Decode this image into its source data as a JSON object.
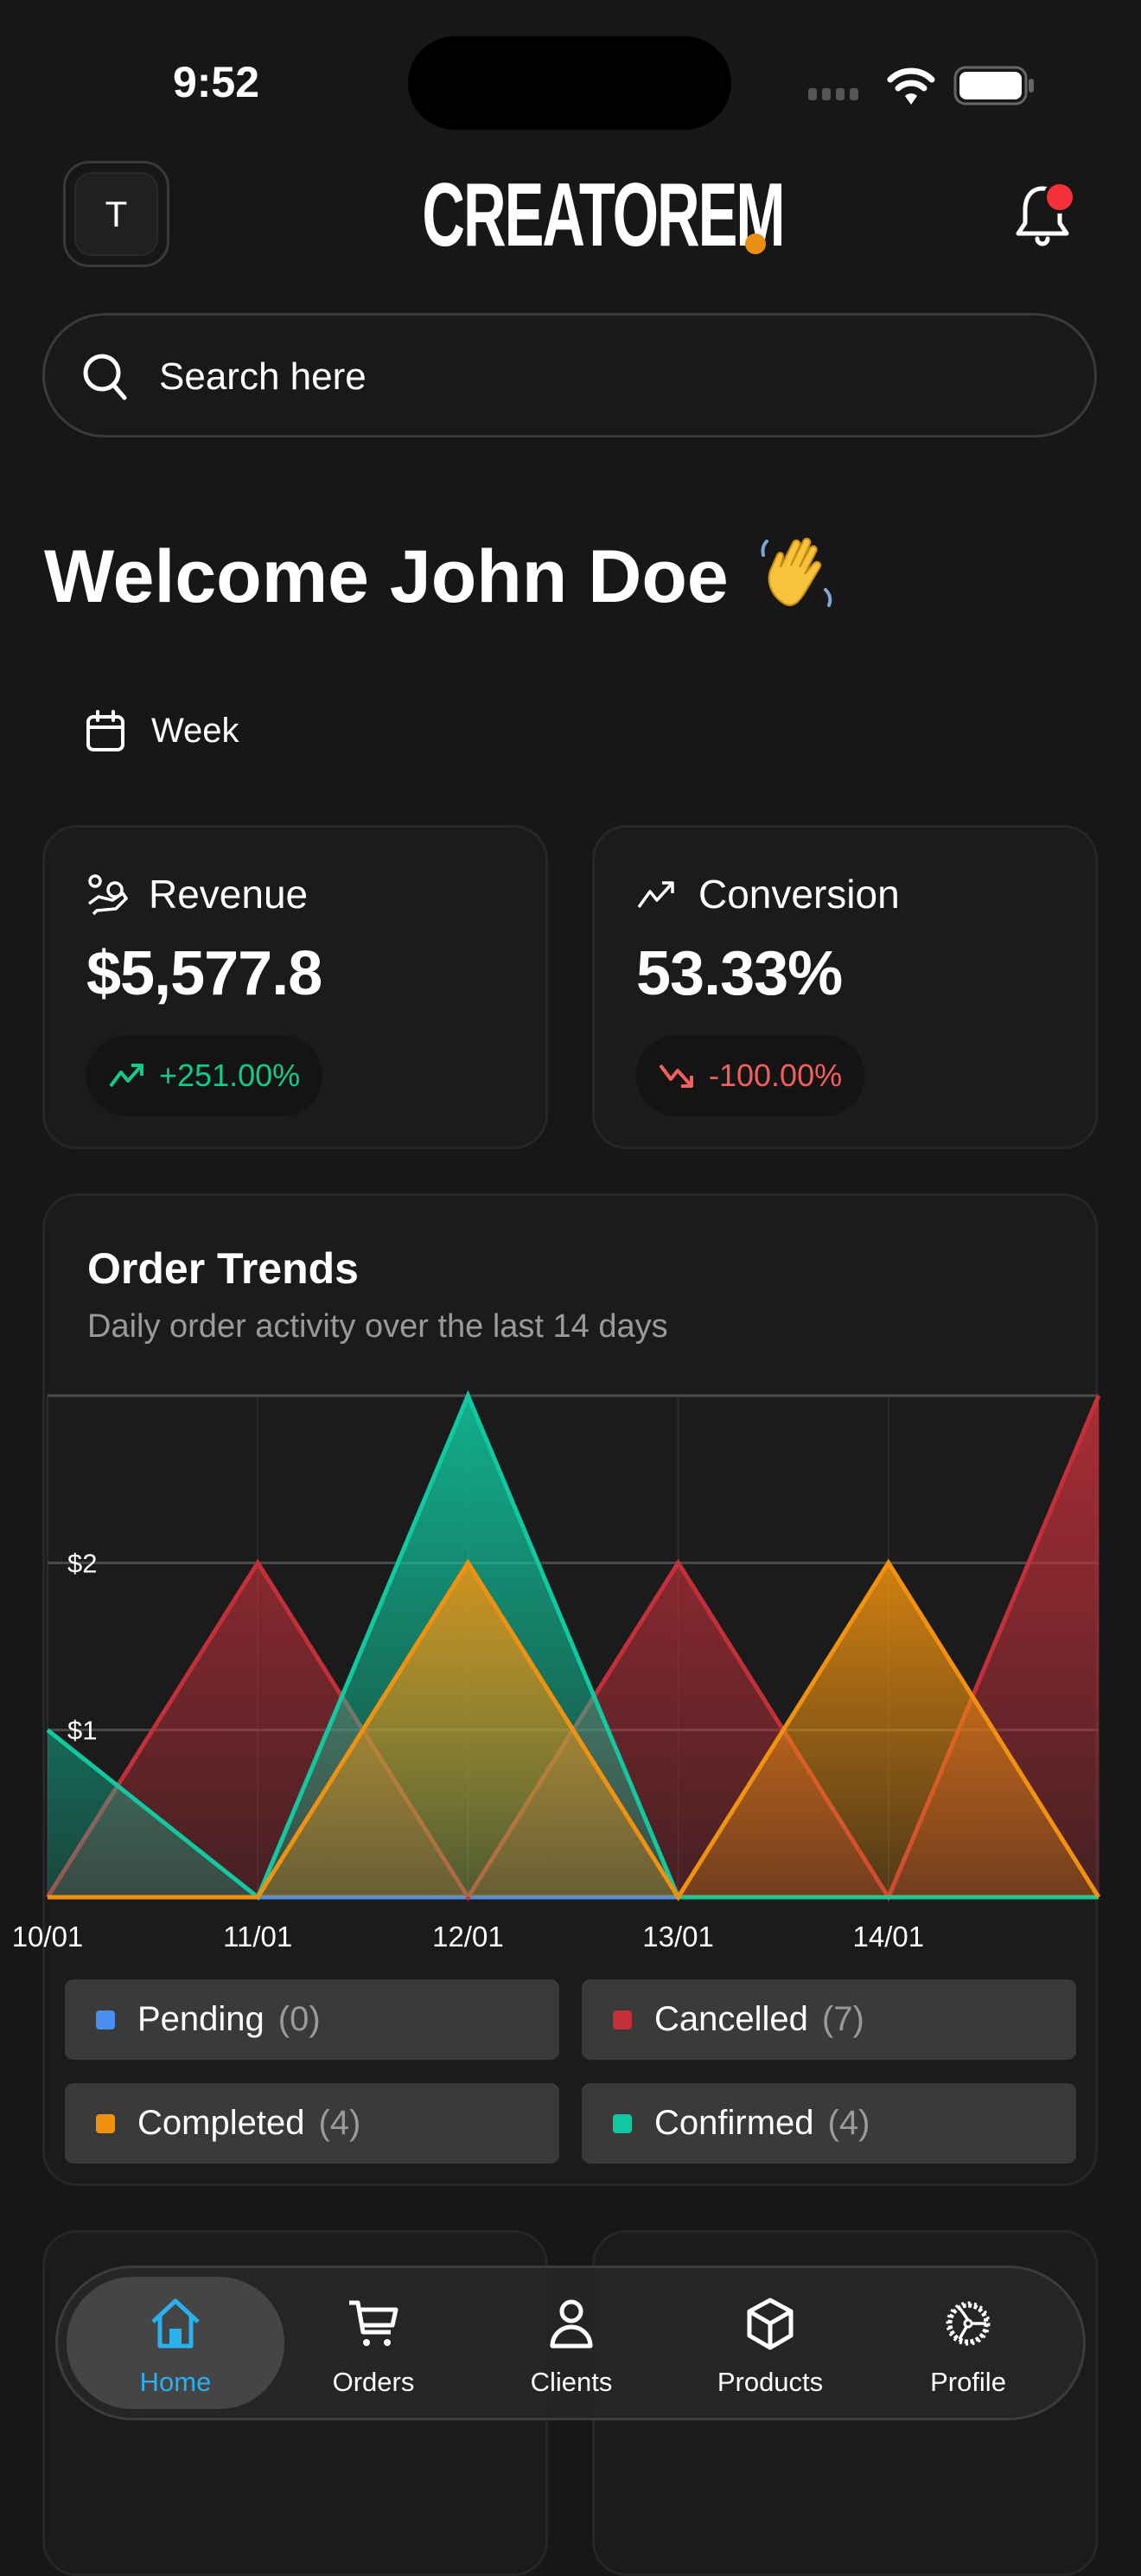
{
  "status_bar": {
    "time": "9:52"
  },
  "header": {
    "avatar_initial": "T",
    "logo": "CREATOREM",
    "notification_icon": "bell-icon",
    "has_unread": true
  },
  "search": {
    "placeholder": "Search here",
    "value": ""
  },
  "welcome": {
    "title": "Welcome John Doe",
    "emoji_icon": "waving-hand-icon"
  },
  "period": {
    "label": "Week",
    "icon": "calendar-icon"
  },
  "stats": [
    {
      "label": "Revenue",
      "icon": "hand-coins-icon",
      "value": "$5,577.8",
      "change": "+251.00%",
      "direction": "up",
      "color": "#10c98f"
    },
    {
      "label": "Conversion",
      "icon": "trending-up-icon",
      "value": "53.33%",
      "change": "-100.00%",
      "direction": "down",
      "color": "#f25f5c"
    }
  ],
  "order_trends": {
    "title": "Order Trends",
    "subtitle": "Daily order activity over the last 14 days",
    "legend": [
      {
        "name": "Pending",
        "count": "(0)",
        "color": "#4a8ef0"
      },
      {
        "name": "Cancelled",
        "count": "(7)",
        "color": "#c3303a"
      },
      {
        "name": "Completed",
        "count": "(4)",
        "color": "#f0920f"
      },
      {
        "name": "Confirmed",
        "count": "(4)",
        "color": "#10c9a0"
      }
    ]
  },
  "chart_data": {
    "type": "area",
    "categories": [
      "10/01",
      "11/01",
      "12/01",
      "13/01",
      "14/01",
      ""
    ],
    "series": [
      {
        "name": "Pending",
        "values": [
          0,
          0,
          0,
          0,
          0,
          0
        ],
        "color": "#4a8ef0"
      },
      {
        "name": "Cancelled",
        "values": [
          0,
          2,
          0,
          2,
          0,
          3
        ],
        "color": "#c3303a"
      },
      {
        "name": "Confirmed",
        "values": [
          1,
          0,
          3,
          0,
          0,
          0
        ],
        "color": "#10c9a0"
      },
      {
        "name": "Completed",
        "values": [
          0,
          0,
          2,
          0,
          2,
          0
        ],
        "color": "#f0920f"
      }
    ],
    "yticks": [
      {
        "value": 1,
        "label": "$1"
      },
      {
        "value": 2,
        "label": "$2"
      }
    ],
    "ylim": [
      0,
      3
    ],
    "grid": true,
    "legend_placement": "bottom"
  },
  "nav": {
    "active": "Home",
    "active_color": "#2bb0f0",
    "items": [
      {
        "label": "Home",
        "icon": "home-icon"
      },
      {
        "label": "Orders",
        "icon": "cart-icon"
      },
      {
        "label": "Clients",
        "icon": "user-icon"
      },
      {
        "label": "Products",
        "icon": "box-icon"
      },
      {
        "label": "Profile",
        "icon": "gear-icon"
      }
    ]
  }
}
